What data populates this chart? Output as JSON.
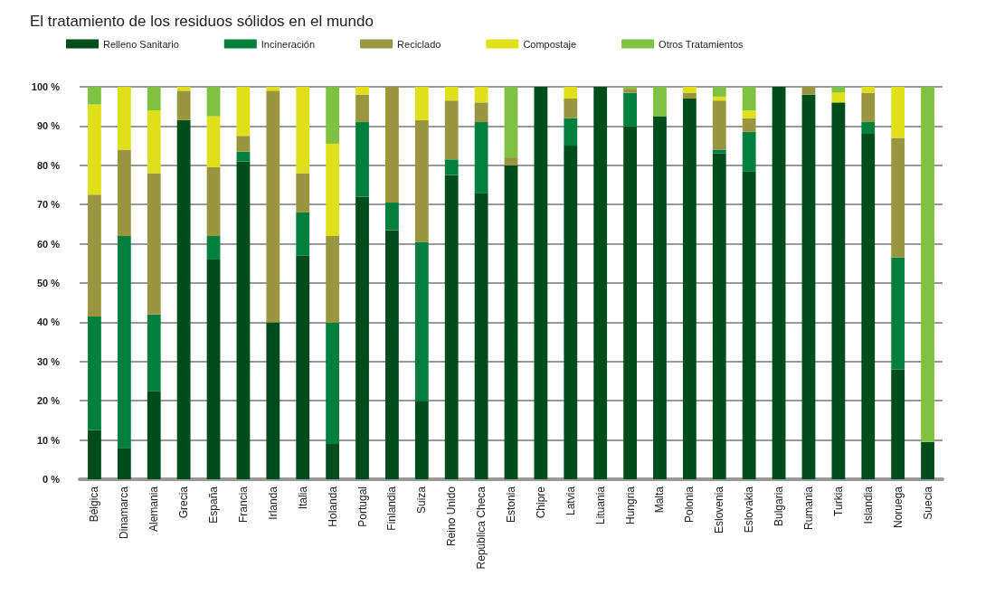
{
  "chart_data": {
    "type": "bar",
    "stacked": true,
    "title": "El tratamiento de los residuos sólidos en el mundo",
    "categories": [
      "Bélgica",
      "Dinamarca",
      "Alemania",
      "Grecia",
      "España",
      "Francia",
      "Irlanda",
      "Italia",
      "Holanda",
      "Portugal",
      "Finlandia",
      "Suiza",
      "Reino Unido",
      "República Checa",
      "Estonia",
      "Chipre",
      "Latvia",
      "Lituania",
      "Hungria",
      "Malta",
      "Polonia",
      "Eslovenia",
      "Eslovakia",
      "Bulgaria",
      "Rumania",
      "Turkia",
      "Islandia",
      "Noruega",
      "Suecia"
    ],
    "series": [
      {
        "name": "Relleno Sanitario",
        "color": "#004d1c",
        "values": [
          12.5,
          8,
          22.5,
          91.5,
          56,
          81,
          40,
          57,
          9,
          72,
          63.5,
          20,
          77.5,
          73,
          80,
          100,
          85,
          100,
          90,
          92.5,
          97,
          83,
          78.5,
          100,
          98,
          96,
          88,
          28,
          9.5
        ]
      },
      {
        "name": "Incineración",
        "color": "#007f3d",
        "values": [
          29,
          54,
          19.5,
          0,
          6,
          2.5,
          0,
          11,
          31,
          19,
          7,
          40.5,
          4,
          18,
          0,
          0,
          7,
          0,
          8.5,
          0,
          0,
          1,
          10,
          0,
          0,
          0,
          3,
          28.5,
          0
        ]
      },
      {
        "name": "Reciclado",
        "color": "#9a9640",
        "values": [
          31,
          22,
          36,
          7.5,
          17.5,
          4,
          59,
          10,
          22,
          7,
          29.5,
          31,
          15,
          5,
          2,
          0,
          5,
          0,
          1,
          0,
          1.5,
          12.5,
          3.5,
          0,
          2,
          0,
          7.5,
          30.5,
          0
        ]
      },
      {
        "name": "Compostaje",
        "color": "#e0e01a",
        "values": [
          23,
          16,
          16,
          1,
          13,
          12.5,
          1,
          22,
          23.5,
          2,
          0,
          8.5,
          3.5,
          4,
          0,
          0,
          3,
          0,
          0,
          0,
          1.5,
          1,
          2,
          0,
          0,
          2.5,
          1.5,
          13,
          0
        ]
      },
      {
        "name": "Otros Tratamientos",
        "color": "#7fc241",
        "values": [
          4.5,
          0,
          6,
          0,
          7.5,
          0,
          0,
          0,
          14.5,
          0,
          0,
          0,
          0,
          0,
          18,
          0,
          0,
          0,
          0.5,
          7.5,
          0,
          2.5,
          6,
          0,
          0,
          1.5,
          0,
          0,
          90.5
        ]
      }
    ],
    "ylim": [
      0,
      100
    ],
    "yticks": [
      {
        "value": 0,
        "label": "0 %"
      },
      {
        "value": 10,
        "label": "10 %"
      },
      {
        "value": 20,
        "label": "20 %"
      },
      {
        "value": 30,
        "label": "30 %"
      },
      {
        "value": 40,
        "label": "40 %"
      },
      {
        "value": 50,
        "label": "50 %"
      },
      {
        "value": 60,
        "label": "60 %"
      },
      {
        "value": 70,
        "label": "70 %"
      },
      {
        "value": 80,
        "label": "80 %"
      },
      {
        "value": 90,
        "label": "90 %"
      },
      {
        "value": 100,
        "label": "100 %"
      }
    ],
    "grid": "y",
    "legend": "top"
  }
}
